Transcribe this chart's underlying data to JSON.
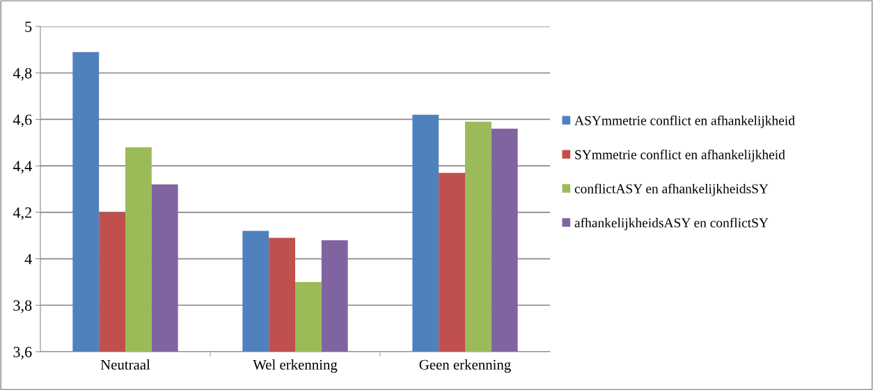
{
  "chart_data": {
    "type": "bar",
    "categories": [
      "Neutraal",
      "Wel erkenning",
      "Geen erkenning"
    ],
    "series": [
      {
        "name": "ASYmmetrie conflict en afhankelijkheid",
        "color": "#4f81bd",
        "values": [
          4.89,
          4.12,
          4.62
        ]
      },
      {
        "name": "SYmmetrie conflict en afhankelijkheid",
        "color": "#c0504d",
        "values": [
          4.2,
          4.09,
          4.37
        ]
      },
      {
        "name": "conflictASY en afhankelijkheidsSY",
        "color": "#9bbb59",
        "values": [
          4.48,
          3.9,
          4.59
        ]
      },
      {
        "name": "afhankelijkheidsASY en conflictSY",
        "color": "#8064a2",
        "values": [
          4.32,
          4.08,
          4.56
        ]
      }
    ],
    "ylim": [
      3.6,
      5
    ],
    "yticks": [
      {
        "value": 3.6,
        "label": "3,6"
      },
      {
        "value": 3.8,
        "label": "3,8"
      },
      {
        "value": 4,
        "label": "4"
      },
      {
        "value": 4.2,
        "label": "4,2"
      },
      {
        "value": 4.4,
        "label": "4,4"
      },
      {
        "value": 4.6,
        "label": "4,6"
      },
      {
        "value": 4.8,
        "label": "4,8"
      },
      {
        "value": 5,
        "label": "5"
      }
    ],
    "grid": "y",
    "legend": "right"
  }
}
